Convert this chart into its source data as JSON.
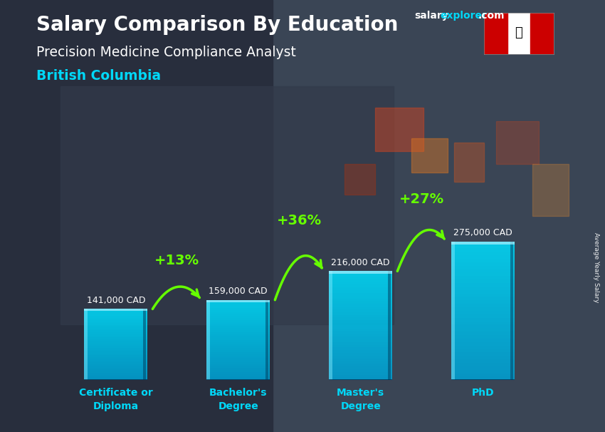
{
  "title_main": "Salary Comparison By Education",
  "title_sub": "Precision Medicine Compliance Analyst",
  "title_location": "British Columbia",
  "website_salary": "salary",
  "website_explorer": "explorer",
  "website_com": ".com",
  "categories": [
    "Certificate or\nDiploma",
    "Bachelor's\nDegree",
    "Master's\nDegree",
    "PhD"
  ],
  "values": [
    141000,
    159000,
    216000,
    275000
  ],
  "value_labels": [
    "141,000 CAD",
    "159,000 CAD",
    "216,000 CAD",
    "275,000 CAD"
  ],
  "pct_changes": [
    "+13%",
    "+36%",
    "+27%"
  ],
  "bar_color_light": "#00d8f8",
  "bar_color_mid": "#00aadd",
  "bar_color_dark": "#0077aa",
  "bar_highlight": "#55eeff",
  "ylabel": "Average Yearly Salary",
  "text_color_white": "#ffffff",
  "text_color_cyan": "#00d8f8",
  "text_color_green": "#66ff00",
  "bg_dark": "#1a2030",
  "bg_overlay": "#283040"
}
